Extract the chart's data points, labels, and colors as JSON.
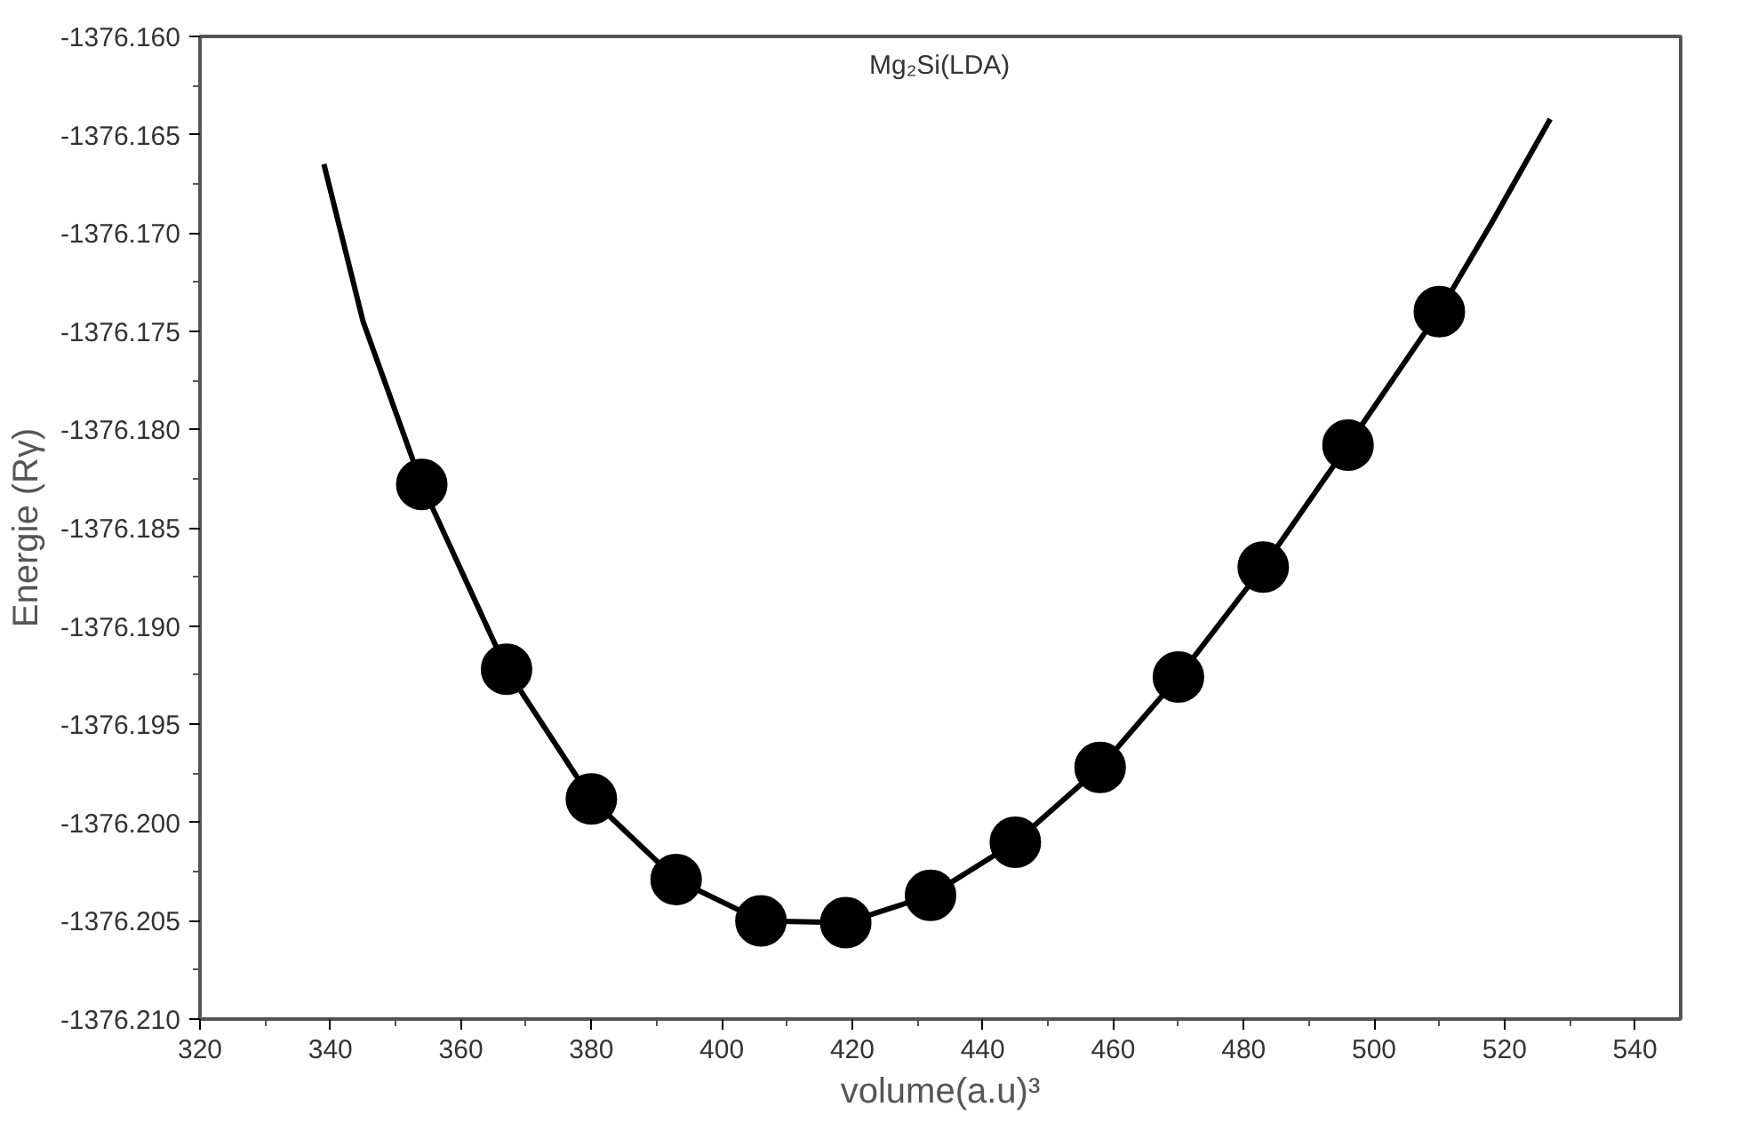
{
  "chart_data": {
    "type": "scatter",
    "xlabel": "volume(a.u)³",
    "ylabel": "Energie (Rγ)",
    "annotations": [
      "Mg₂Si(LDA)"
    ],
    "xlim": [
      320,
      547
    ],
    "xticks": [
      320,
      340,
      360,
      380,
      400,
      420,
      440,
      460,
      480,
      500,
      520,
      540
    ],
    "ylim": [
      -1376.21,
      -1376.16
    ],
    "yticks": [
      {
        "value": -1376.21,
        "label": "-1376.210"
      },
      {
        "value": -1376.205,
        "label": "-1376.205"
      },
      {
        "value": -1376.2,
        "label": "-1376.200"
      },
      {
        "value": -1376.195,
        "label": "-1376.195"
      },
      {
        "value": -1376.19,
        "label": "-1376.190"
      },
      {
        "value": -1376.185,
        "label": "-1376.185"
      },
      {
        "value": -1376.18,
        "label": "-1376.180"
      },
      {
        "value": -1376.175,
        "label": "-1376.175"
      },
      {
        "value": -1376.17,
        "label": "-1376.170"
      },
      {
        "value": -1376.165,
        "label": "-1376.165"
      },
      {
        "value": -1376.16,
        "label": "-1376.160"
      }
    ],
    "grid": false,
    "series": [
      {
        "type": "line",
        "color": "#000000",
        "marker": "none",
        "line_style": "solid",
        "x": [
          339,
          345,
          354,
          367,
          380,
          393,
          406,
          419,
          432,
          445,
          458,
          470,
          483,
          496,
          510,
          518,
          527
        ],
        "values": [
          -1376.1665,
          -1376.1745,
          -1376.1828,
          -1376.1922,
          -1376.1988,
          -1376.2029,
          -1376.205,
          -1376.2051,
          -1376.2037,
          -1376.201,
          -1376.1972,
          -1376.1926,
          -1376.187,
          -1376.1808,
          -1376.174,
          -1376.1695,
          -1376.1642
        ]
      },
      {
        "color": "#000000",
        "marker": "circle",
        "x": [
          354,
          367,
          380,
          393,
          406,
          419,
          432,
          445,
          458,
          470,
          483,
          496,
          510
        ],
        "values": [
          -1376.1828,
          -1376.1922,
          -1376.1988,
          -1376.2029,
          -1376.205,
          -1376.2051,
          -1376.2037,
          -1376.201,
          -1376.1972,
          -1376.1926,
          -1376.187,
          -1376.1808,
          -1376.174
        ]
      }
    ]
  }
}
